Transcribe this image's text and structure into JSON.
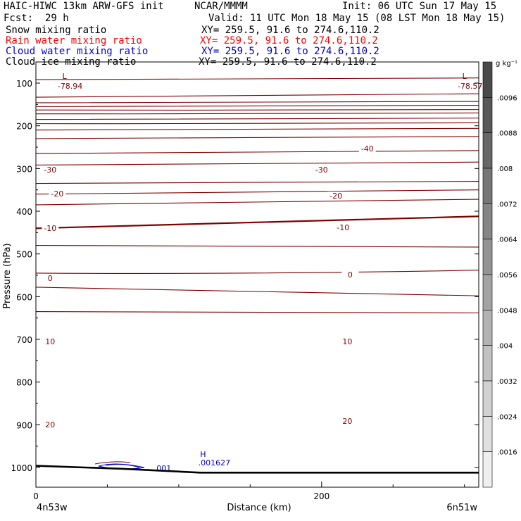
{
  "header": {
    "title": "HAIC-HIWC 13km ARW-GFS init",
    "org": "NCAR/MMMM",
    "init": "Init: 06 UTC Sun 17 May 15",
    "fcst_label": "Fcst:",
    "fcst_value": "29 h",
    "valid": "Valid: 11 UTC Mon 18 May 15 (08 LST Mon 18 May 15)"
  },
  "fields": [
    {
      "name": "Snow mixing ratio",
      "xy": "XY= 259.5, 91.6 to 274.6,110.2",
      "color": "#000000"
    },
    {
      "name": "Rain water mixing ratio",
      "xy": "XY= 259.5, 91.6 to 274.6,110.2",
      "color": "#ff0000"
    },
    {
      "name": "Cloud water mixing ratio",
      "xy": "XY= 259.5, 91.6 to 274.6,110.2",
      "color": "#0000cc"
    },
    {
      "name": "Cloud ice mixing ratio",
      "xy": "XY= 259.5, 91.6 to 274.6,110.2",
      "color": "#000000"
    }
  ],
  "chart_data": {
    "type": "contour-cross-section",
    "ylabel": "Pressure (hPa)",
    "xlabel": "Distance (km)",
    "yrange": [
      1050,
      70
    ],
    "y_ticks": [
      "100",
      "200",
      "300",
      "400",
      "500",
      "600",
      "700",
      "800",
      "900",
      "1000"
    ],
    "xrange": [
      0,
      310
    ],
    "x_ticks": [
      "0",
      "200"
    ],
    "x_start_label": "4n53w",
    "x_end_label": "6n51w",
    "colorbar": {
      "unit": "g kg⁻¹",
      "labels": [
        ".0096",
        ".0088",
        ".008",
        ".0072",
        ".0064",
        ".0056",
        ".0048",
        ".004",
        ".0032",
        ".0024",
        ".0016"
      ],
      "colors": [
        "#4a4a4a",
        "#585858",
        "#676767",
        "#767676",
        "#858585",
        "#949494",
        "#a3a3a3",
        "#b3b3b3",
        "#c2c2c2",
        "#d1d1d1",
        "#e0e0e0",
        "#efefef"
      ]
    },
    "contour_color": "#800000",
    "contour_lines": [
      {
        "left": 92,
        "right": 88
      },
      {
        "left": 133,
        "right": 125
      },
      {
        "left": 146,
        "right": 143
      },
      {
        "left": 155,
        "right": 152
      },
      {
        "left": 163,
        "right": 162
      },
      {
        "left": 172,
        "right": 170
      },
      {
        "left": 185,
        "right": 182
      },
      {
        "left": 195,
        "right": 193
      },
      {
        "left": 210,
        "right": 206
      },
      {
        "left": 230,
        "right": 225
      },
      {
        "left": 265,
        "right": 258
      },
      {
        "left": 292,
        "right": 285
      },
      {
        "left": 335,
        "right": 330
      },
      {
        "left": 360,
        "right": 350
      },
      {
        "left": 385,
        "right": 372
      },
      {
        "left": 440,
        "right": 412
      },
      {
        "left": 480,
        "right": 484
      },
      {
        "left": 545,
        "right": 538
      },
      {
        "left": 578,
        "right": 598
      },
      {
        "left": 635,
        "right": 638
      }
    ],
    "contour_labels": [
      {
        "text": "-40",
        "x": 232,
        "y": 213
      },
      {
        "text": "-30",
        "x": 10,
        "y": 243
      },
      {
        "text": "-30",
        "x": 200,
        "y": 243
      },
      {
        "text": "-20",
        "x": 15,
        "y": 277
      },
      {
        "text": "-20",
        "x": 210,
        "y": 280
      },
      {
        "text": "-10",
        "x": 10,
        "y": 326
      },
      {
        "text": "-10",
        "x": 215,
        "y": 325
      },
      {
        "text": "0",
        "x": 10,
        "y": 397
      },
      {
        "text": "0",
        "x": 220,
        "y": 392
      },
      {
        "text": "10",
        "x": 10,
        "y": 487
      },
      {
        "text": "10",
        "x": 218,
        "y": 487
      },
      {
        "text": "20",
        "x": 10,
        "y": 605
      },
      {
        "text": "20",
        "x": 218,
        "y": 600
      }
    ],
    "lows": [
      {
        "symbol": "L",
        "value": "-78.94",
        "x": 20,
        "y": 108
      },
      {
        "symbol": "L",
        "value": "-78.57",
        "x": 300,
        "y": 108
      }
    ],
    "highs": [
      {
        "symbol": "H",
        "value": ".001627",
        "x": 117,
        "y": 645
      }
    ],
    "cloud_water_label": ".001",
    "terrain": [
      [
        0,
        996
      ],
      [
        60,
        1003
      ],
      [
        115,
        1012
      ],
      [
        310,
        1012
      ]
    ]
  }
}
